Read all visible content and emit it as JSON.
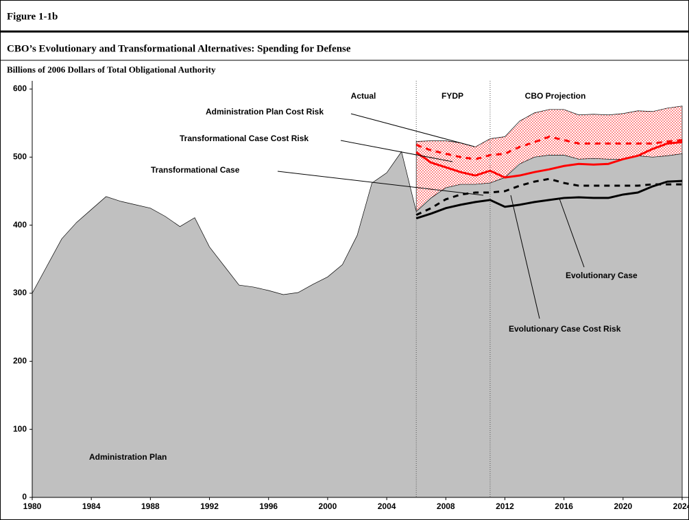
{
  "figure_label": "Figure 1-1b",
  "chart_data": {
    "type": "area-line",
    "title": "CBO’s Evolutionary and Transformational Alternatives: Spending for Defense",
    "y_label": "Billions of 2006 Dollars of Total Obligational Authority",
    "x": [
      1980,
      1981,
      1982,
      1983,
      1984,
      1985,
      1986,
      1987,
      1988,
      1989,
      1990,
      1991,
      1992,
      1993,
      1994,
      1995,
      1996,
      1997,
      1998,
      1999,
      2000,
      2001,
      2002,
      2003,
      2004,
      2005,
      2006,
      2007,
      2008,
      2009,
      2010,
      2011,
      2012,
      2013,
      2014,
      2015,
      2016,
      2017,
      2018,
      2019,
      2020,
      2021,
      2022,
      2023,
      2024
    ],
    "xlim": [
      1980,
      2024
    ],
    "xticks": [
      1980,
      1984,
      1988,
      1992,
      1996,
      2000,
      2004,
      2008,
      2012,
      2016,
      2020,
      2024
    ],
    "ylim": [
      0,
      600
    ],
    "yticks": [
      0,
      100,
      200,
      300,
      400,
      500,
      600
    ],
    "grid": false,
    "period_dividers": [
      2006,
      2011
    ],
    "annotations": [
      "Actual",
      "FYDP",
      "CBO Projection"
    ],
    "series": [
      {
        "name": "Administration Plan",
        "style": "area",
        "color": "#c0c0c0",
        "values": [
          300,
          340,
          380,
          404,
          423,
          442,
          435,
          430,
          425,
          413,
          398,
          411,
          368,
          340,
          312,
          309,
          304,
          298,
          301,
          313,
          324,
          342,
          385,
          462,
          477,
          508,
          420,
          440,
          455,
          460,
          460,
          462,
          470,
          490,
          500,
          503,
          503,
          497,
          498,
          497,
          497,
          502,
          500,
          502,
          505
        ]
      },
      {
        "name": "Administration Plan Cost Risk",
        "style": "dotted-area",
        "color": "#ff0000",
        "values": [
          null,
          null,
          null,
          null,
          null,
          null,
          null,
          null,
          null,
          null,
          null,
          null,
          null,
          null,
          null,
          null,
          null,
          null,
          null,
          null,
          null,
          null,
          null,
          null,
          null,
          null,
          523,
          524,
          524,
          521,
          515,
          527,
          530,
          553,
          565,
          570,
          570,
          562,
          563,
          562,
          564,
          568,
          567,
          572,
          575
        ]
      },
      {
        "name": "Transformational Case Cost Risk",
        "style": "dashed",
        "color": "#ff0000",
        "values": [
          null,
          null,
          null,
          null,
          null,
          null,
          null,
          null,
          null,
          null,
          null,
          null,
          null,
          null,
          null,
          null,
          null,
          null,
          null,
          null,
          null,
          null,
          null,
          null,
          null,
          null,
          518,
          510,
          505,
          500,
          497,
          503,
          505,
          515,
          522,
          530,
          525,
          520,
          520,
          520,
          520,
          520,
          520,
          523,
          525
        ]
      },
      {
        "name": "Transformational Case",
        "style": "solid",
        "color": "#ff0000",
        "values": [
          null,
          null,
          null,
          null,
          null,
          null,
          null,
          null,
          null,
          null,
          null,
          null,
          null,
          null,
          null,
          null,
          null,
          null,
          null,
          null,
          null,
          null,
          null,
          null,
          null,
          null,
          507,
          492,
          485,
          478,
          473,
          480,
          470,
          473,
          478,
          482,
          487,
          490,
          489,
          490,
          497,
          502,
          512,
          520,
          522
        ]
      },
      {
        "name": "Evolutionary Case",
        "style": "solid",
        "color": "#000000",
        "values": [
          null,
          null,
          null,
          null,
          null,
          null,
          null,
          null,
          null,
          null,
          null,
          null,
          null,
          null,
          null,
          null,
          null,
          null,
          null,
          null,
          null,
          null,
          null,
          null,
          null,
          null,
          410,
          417,
          425,
          430,
          434,
          437,
          427,
          430,
          434,
          437,
          440,
          441,
          440,
          440,
          445,
          448,
          457,
          464,
          465
        ]
      },
      {
        "name": "Evolutionary Case Cost Risk",
        "style": "dashed",
        "color": "#000000",
        "values": [
          null,
          null,
          null,
          null,
          null,
          null,
          null,
          null,
          null,
          null,
          null,
          null,
          null,
          null,
          null,
          null,
          null,
          null,
          null,
          null,
          null,
          null,
          null,
          null,
          null,
          null,
          415,
          425,
          438,
          445,
          448,
          448,
          450,
          458,
          464,
          468,
          462,
          458,
          458,
          458,
          458,
          458,
          460,
          460,
          460
        ]
      }
    ]
  }
}
